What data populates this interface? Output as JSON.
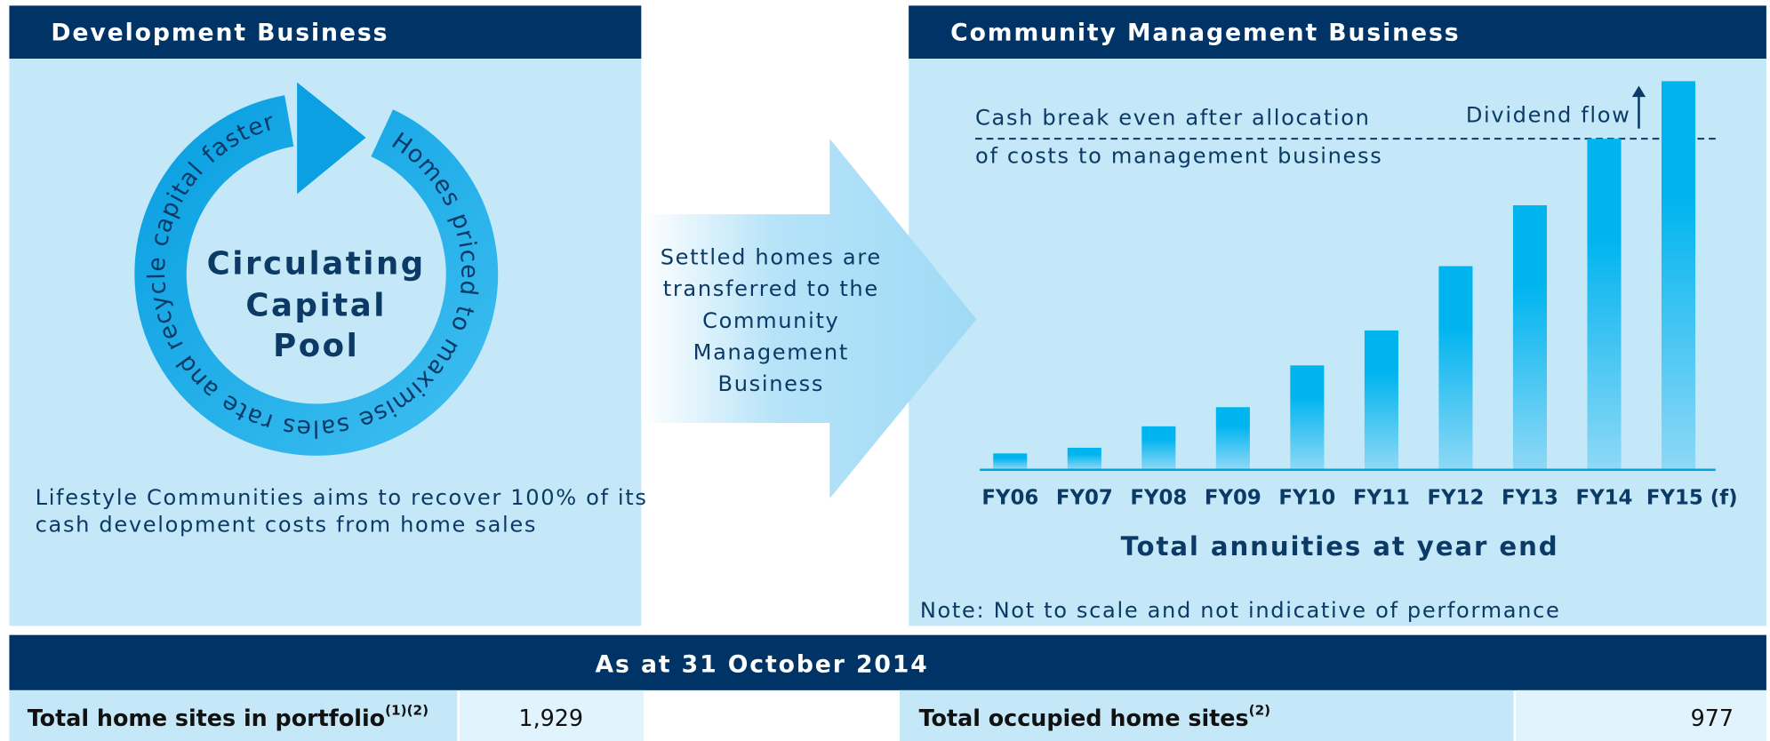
{
  "left_panel": {
    "title": "Development Business",
    "cycle_text": "Homes priced to maximise sales rate and recycle capital faster",
    "center_text": [
      "Circulating",
      "Capital",
      "Pool"
    ],
    "description": [
      "Lifestyle Communities aims to recover 100% of its",
      "cash development costs from home sales"
    ]
  },
  "transfer_arrow": {
    "text": [
      "Settled homes are",
      "transferred to the",
      "Community",
      "Management",
      "Business"
    ]
  },
  "chart_data": {
    "type": "bar",
    "title": "Community Management Business",
    "categories": [
      "FY06",
      "FY07",
      "FY08",
      "FY09",
      "FY10",
      "FY11",
      "FY12",
      "FY13",
      "FY14",
      "FY15 (f)"
    ],
    "values": [
      14,
      19,
      38,
      55,
      92,
      123,
      180,
      234,
      293,
      344
    ],
    "color": "#00b4ef",
    "x_label": "Total annuities at year end",
    "annotations": {
      "break_even": [
        "Cash break even after allocation",
        "of costs to management business"
      ],
      "dividend": "Dividend flow"
    },
    "note": "Note: Not to scale and not indicative of performance"
  },
  "footer": {
    "title": "As at 31 October 2014",
    "left": {
      "label": "Total home sites in portfolio",
      "note": "(1)(2)",
      "value": "1,929"
    },
    "right": {
      "label": "Total occupied home sites",
      "note": "(2)",
      "value": "977"
    }
  }
}
